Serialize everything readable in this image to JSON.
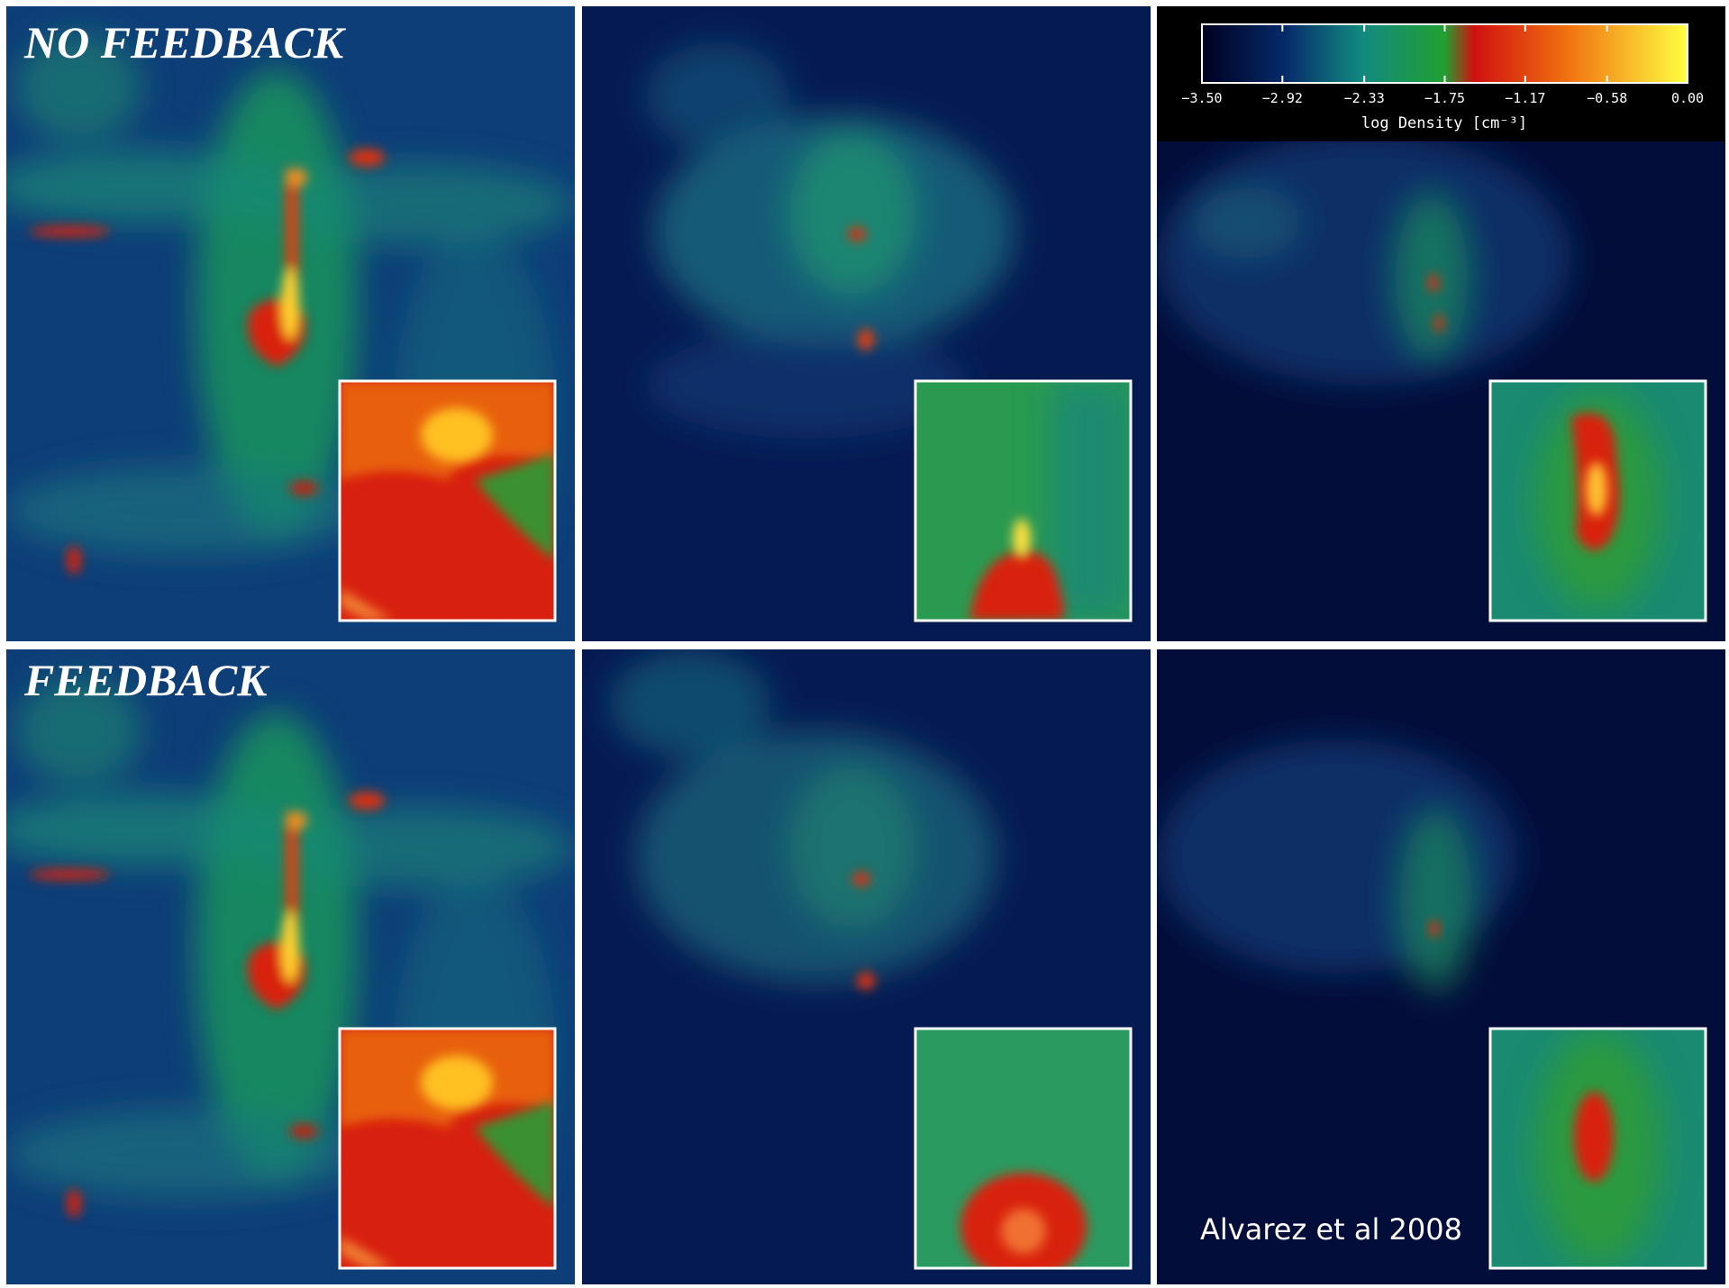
{
  "panel_labels": [
    "NO FEEDBACK",
    "FEEDBACK"
  ],
  "colorbar": {
    "ticks": [
      {
        "value": -3.5,
        "label": "−3.50"
      },
      {
        "value": -2.92,
        "label": "−2.92"
      },
      {
        "value": -2.33,
        "label": "−2.33"
      },
      {
        "value": -1.75,
        "label": "−1.75"
      },
      {
        "value": -1.17,
        "label": "−1.17"
      },
      {
        "value": -0.58,
        "label": "−0.58"
      },
      {
        "value": 0,
        "label": "0.00"
      }
    ],
    "label": "log Density [cm⁻³]"
  },
  "credit": "Alvarez et al 2008"
}
